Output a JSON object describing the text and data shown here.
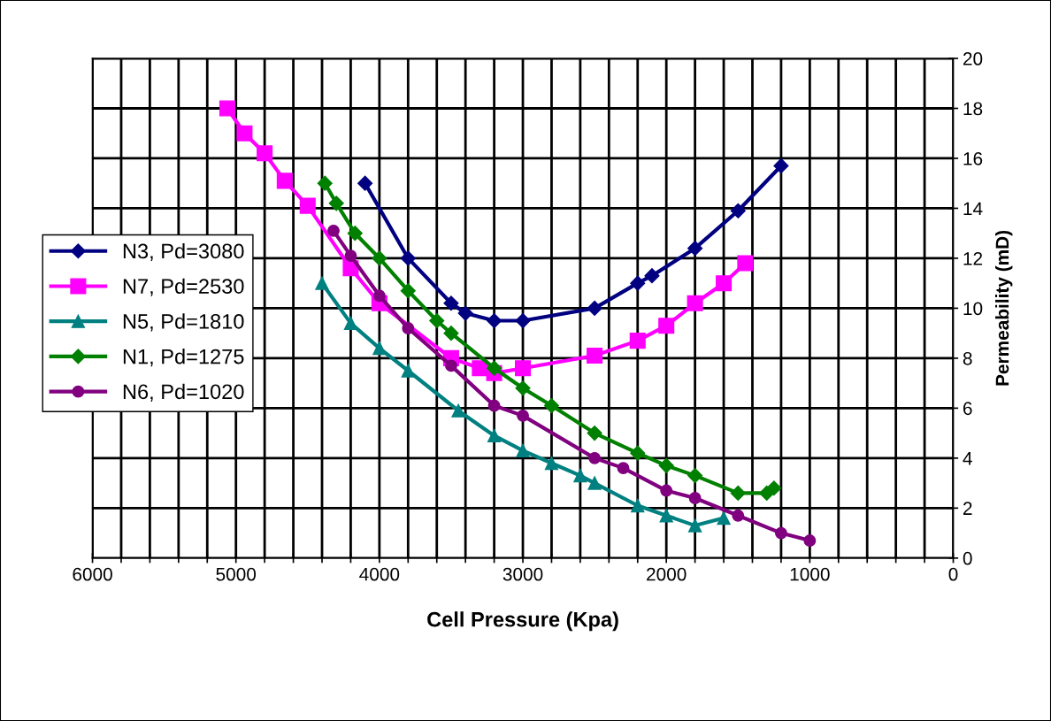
{
  "chart_data": {
    "type": "line",
    "xlabel": "Cell Pressure (Kpa)",
    "ylabel": "Permeability (mD)",
    "xlim": [
      6000,
      0
    ],
    "ylim": [
      0,
      20
    ],
    "xticks": [
      6000,
      {
        "value": 5800,
        "label": null
      },
      {
        "value": 5600,
        "label": null
      },
      {
        "value": 5400,
        "label": null
      },
      {
        "value": 5200,
        "label": null
      },
      5000,
      {
        "value": 4800,
        "label": null
      },
      {
        "value": 4600,
        "label": null
      },
      {
        "value": 4400,
        "label": null
      },
      {
        "value": 4200,
        "label": null
      },
      4000,
      {
        "value": 3800,
        "label": null
      },
      {
        "value": 3600,
        "label": null
      },
      {
        "value": 3400,
        "label": null
      },
      {
        "value": 3200,
        "label": null
      },
      3000,
      {
        "value": 2800,
        "label": null
      },
      {
        "value": 2600,
        "label": null
      },
      {
        "value": 2400,
        "label": null
      },
      {
        "value": 2200,
        "label": null
      },
      2000,
      {
        "value": 1800,
        "label": null
      },
      {
        "value": 1600,
        "label": null
      },
      {
        "value": 1400,
        "label": null
      },
      {
        "value": 1200,
        "label": null
      },
      1000,
      {
        "value": 800,
        "label": null
      },
      {
        "value": 600,
        "label": null
      },
      {
        "value": 400,
        "label": null
      },
      {
        "value": 200,
        "label": null
      },
      0
    ],
    "yticks": [
      0,
      2,
      4,
      6,
      8,
      10,
      12,
      14,
      16,
      18,
      20
    ],
    "grid": true,
    "legend": "left",
    "line_style": "solid",
    "series": [
      {
        "name": "N3, Pd=3080",
        "color": "#000080",
        "marker": "diamond",
        "x": [
          4100,
          3800,
          3500,
          3400,
          3200,
          3000,
          2500,
          2200,
          2100,
          1800,
          1500,
          1200
        ],
        "values": [
          15.0,
          12.0,
          10.2,
          9.8,
          9.5,
          9.5,
          10.0,
          11.0,
          11.3,
          12.4,
          13.9,
          15.7
        ]
      },
      {
        "name": "N7, Pd=2530",
        "color": "#ff00ff",
        "marker": "square",
        "x": [
          5060,
          4940,
          4800,
          4660,
          4500,
          4200,
          4000,
          3500,
          3300,
          3200,
          3000,
          2500,
          2200,
          2000,
          1800,
          1600,
          1450
        ],
        "values": [
          18.0,
          17.0,
          16.2,
          15.1,
          14.1,
          11.6,
          10.2,
          8.0,
          7.6,
          7.4,
          7.6,
          8.1,
          8.7,
          9.3,
          10.2,
          11.0,
          11.8
        ]
      },
      {
        "name": "N5, Pd=1810",
        "color": "#008080",
        "marker": "triangle",
        "x": [
          4400,
          4200,
          4000,
          3800,
          3450,
          3200,
          3000,
          2800,
          2600,
          2500,
          2200,
          2000,
          1800,
          1600
        ],
        "values": [
          11.0,
          9.4,
          8.4,
          7.5,
          5.9,
          4.9,
          4.3,
          3.8,
          3.3,
          3.0,
          2.1,
          1.7,
          1.3,
          1.6
        ]
      },
      {
        "name": "N1, Pd=1275",
        "color": "#008000",
        "marker": "diamond",
        "x": [
          4380,
          4300,
          4170,
          4000,
          3800,
          3600,
          3500,
          3200,
          3000,
          2800,
          2500,
          2200,
          2000,
          1800,
          1500,
          1300,
          1250
        ],
        "values": [
          15.0,
          14.2,
          13.0,
          12.0,
          10.7,
          9.5,
          9.0,
          7.6,
          6.8,
          6.1,
          5.0,
          4.2,
          3.7,
          3.3,
          2.6,
          2.6,
          2.8
        ]
      },
      {
        "name": "N6, Pd=1020",
        "color": "#800080",
        "marker": "circle",
        "x": [
          4320,
          4200,
          4000,
          3800,
          3500,
          3200,
          3000,
          2500,
          2300,
          2000,
          1800,
          1500,
          1200,
          1000
        ],
        "values": [
          13.1,
          12.1,
          10.5,
          9.2,
          7.7,
          6.1,
          5.7,
          4.0,
          3.6,
          2.7,
          2.4,
          1.7,
          1.0,
          0.7
        ]
      }
    ]
  }
}
